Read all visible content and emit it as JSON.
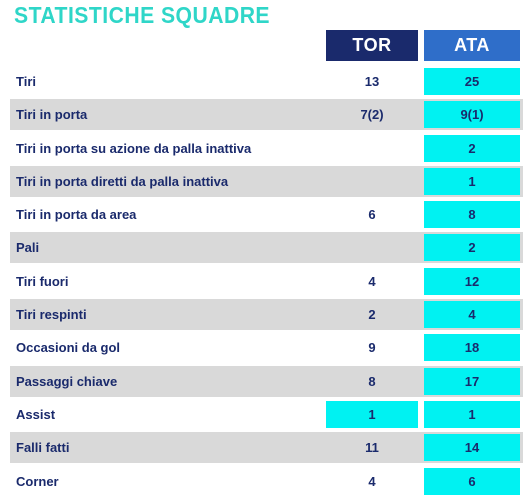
{
  "title": "STATISTICHE SQUADRE",
  "teams": {
    "home": "TOR",
    "away": "ATA"
  },
  "colors": {
    "title": "#2fd6c8",
    "home_header": "#1a2a6c",
    "away_header": "#2f6ec9",
    "highlight": "#00f2f2",
    "row_shade": "#d9d9d9",
    "text": "#1a2a6c"
  },
  "rows": [
    {
      "label": "Tiri",
      "tor": "13",
      "ata": "25",
      "highlight": "ata"
    },
    {
      "label": "Tiri in porta",
      "tor": "7(2)",
      "ata": "9(1)",
      "highlight": "ata"
    },
    {
      "label": "Tiri in porta su azione da palla inattiva",
      "tor": "",
      "ata": "2",
      "highlight": "ata"
    },
    {
      "label": "Tiri in porta diretti da palla inattiva",
      "tor": "",
      "ata": "1",
      "highlight": "ata"
    },
    {
      "label": "Tiri in porta da area",
      "tor": "6",
      "ata": "8",
      "highlight": "ata"
    },
    {
      "label": "Pali",
      "tor": "",
      "ata": "2",
      "highlight": "ata"
    },
    {
      "label": "Tiri fuori",
      "tor": "4",
      "ata": "12",
      "highlight": "ata"
    },
    {
      "label": "Tiri respinti",
      "tor": "2",
      "ata": "4",
      "highlight": "ata"
    },
    {
      "label": "Occasioni da gol",
      "tor": "9",
      "ata": "18",
      "highlight": "ata"
    },
    {
      "label": "Passaggi chiave",
      "tor": "8",
      "ata": "17",
      "highlight": "ata"
    },
    {
      "label": "Assist",
      "tor": "1",
      "ata": "1",
      "highlight": "both"
    },
    {
      "label": "Falli fatti",
      "tor": "11",
      "ata": "14",
      "highlight": "ata"
    },
    {
      "label": "Corner",
      "tor": "4",
      "ata": "6",
      "highlight": "ata"
    }
  ]
}
